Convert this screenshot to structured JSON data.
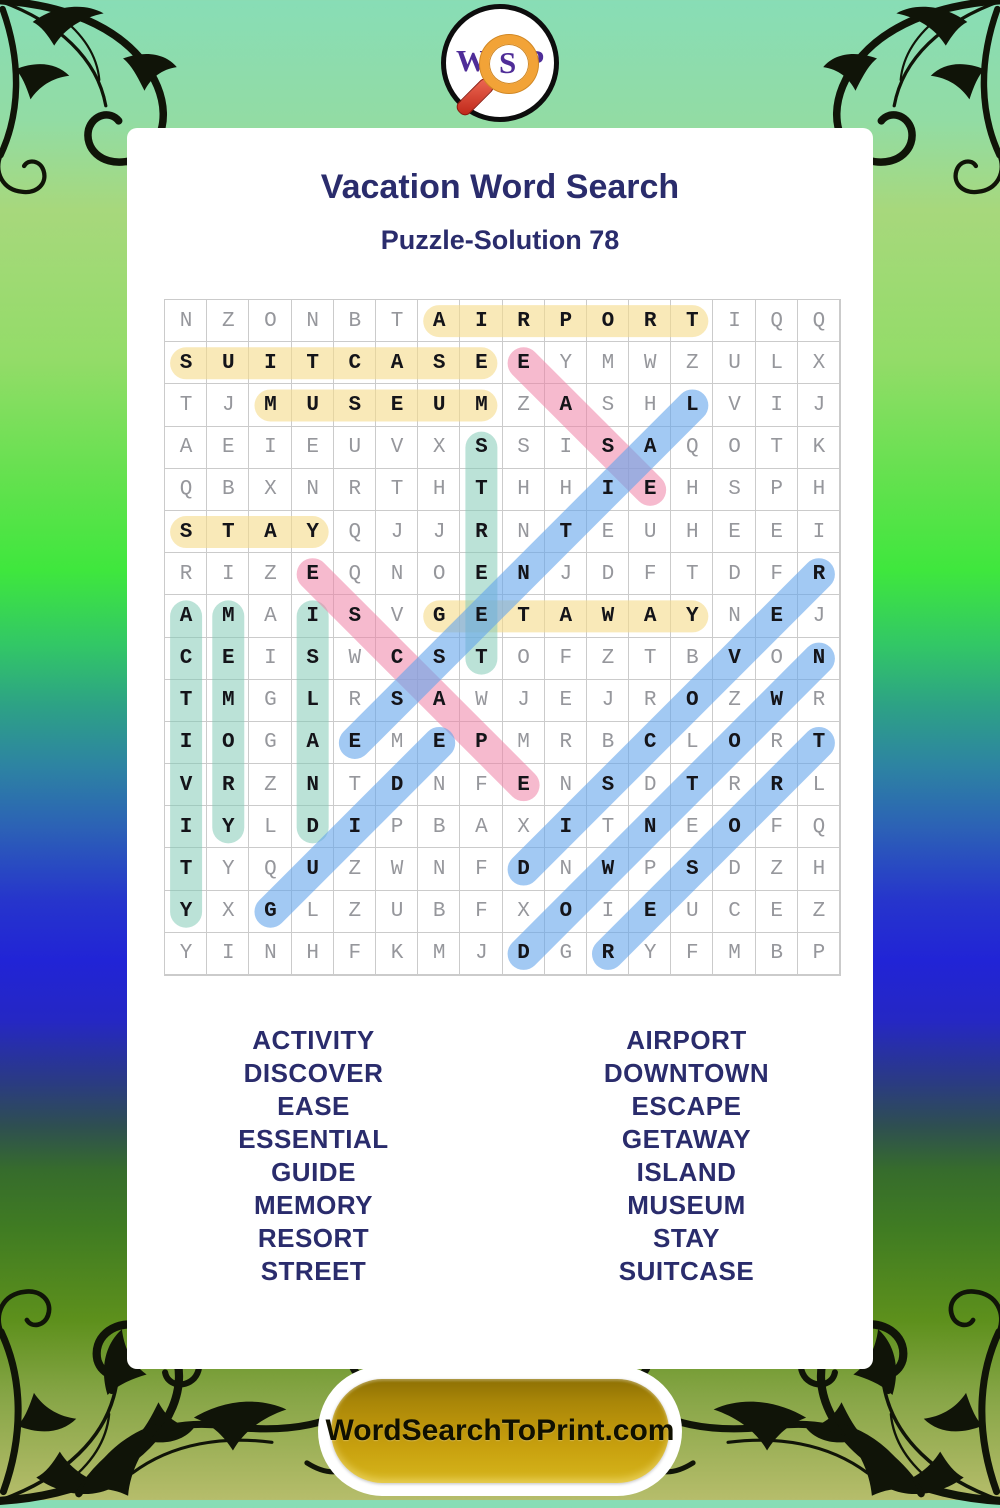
{
  "logo": {
    "w": "W",
    "s": "S",
    "p": "P"
  },
  "header": {
    "title": "Vacation Word Search",
    "subtitle": "Puzzle-Solution 78"
  },
  "puzzle": {
    "grid": [
      "NZONBTAIRPORTIQQ",
      "SUITCASEEYMWZULX",
      "TJMUSEUMZASHLVIJ",
      "AEIEUVXSSISAQOTK",
      "QBXNRTHTHHIEHSPH",
      "STAYQJJRNTEUHEEI",
      "RIZEQNOENJDFTDFR",
      "AMAISVGETAWAYNEJ",
      "CEISWCSTOFZTBVON",
      "TMGLRSAWJEJROZWR",
      "IOGAEMEPMRBCLORT",
      "VRZNTDNFENSDTRRL",
      "IYLDIPBAXITNEOFQ",
      "TYQUZWNFDNWPSDZH",
      "YXGLZUBFXOIEUCEZ",
      "YINHFKMJDGRYFMBP"
    ],
    "highlight_colors": {
      "yellow": "rgba(246,220,140,0.62)",
      "green": "rgba(132,203,182,0.55)",
      "pink": "rgba(238,130,165,0.55)",
      "blue": "rgba(100,165,235,0.6)"
    },
    "highlights": [
      {
        "word": "AIRPORT",
        "r1": 1,
        "c1": 7,
        "r2": 1,
        "c2": 13,
        "color": "yellow"
      },
      {
        "word": "SUITCASE",
        "r1": 2,
        "c1": 1,
        "r2": 2,
        "c2": 8,
        "color": "yellow"
      },
      {
        "word": "MUSEUM",
        "r1": 3,
        "c1": 3,
        "r2": 3,
        "c2": 8,
        "color": "yellow"
      },
      {
        "word": "STAY",
        "r1": 6,
        "c1": 1,
        "r2": 6,
        "c2": 4,
        "color": "yellow"
      },
      {
        "word": "GETAWAY",
        "r1": 8,
        "c1": 7,
        "r2": 8,
        "c2": 13,
        "color": "yellow"
      },
      {
        "word": "STREET",
        "r1": 4,
        "c1": 8,
        "r2": 9,
        "c2": 8,
        "color": "green"
      },
      {
        "word": "ACTIVITY",
        "r1": 8,
        "c1": 1,
        "r2": 15,
        "c2": 1,
        "color": "green"
      },
      {
        "word": "MEMORY",
        "r1": 8,
        "c1": 2,
        "r2": 13,
        "c2": 2,
        "color": "green"
      },
      {
        "word": "ISLAND",
        "r1": 8,
        "c1": 4,
        "r2": 13,
        "c2": 4,
        "color": "green"
      },
      {
        "word": "EASE",
        "r1": 2,
        "c1": 9,
        "r2": 5,
        "c2": 12,
        "color": "pink"
      },
      {
        "word": "ESCAPE",
        "r1": 7,
        "c1": 4,
        "r2": 12,
        "c2": 9,
        "color": "pink"
      },
      {
        "word": "ESSENTIAL",
        "r1": 11,
        "c1": 5,
        "r2": 3,
        "c2": 13,
        "color": "blue"
      },
      {
        "word": "GUIDE",
        "r1": 15,
        "c1": 3,
        "r2": 11,
        "c2": 7,
        "color": "blue"
      },
      {
        "word": "DISCOVER",
        "r1": 14,
        "c1": 9,
        "r2": 7,
        "c2": 16,
        "color": "blue"
      },
      {
        "word": "DOWNTOWN",
        "r1": 16,
        "c1": 9,
        "r2": 9,
        "c2": 16,
        "color": "blue"
      },
      {
        "word": "RESORT",
        "r1": 16,
        "c1": 11,
        "r2": 11,
        "c2": 16,
        "color": "blue"
      }
    ]
  },
  "word_lists": {
    "left": [
      "ACTIVITY",
      "DISCOVER",
      "EASE",
      "ESSENTIAL",
      "GUIDE",
      "MEMORY",
      "RESORT",
      "STREET"
    ],
    "right": [
      "AIRPORT",
      "DOWNTOWN",
      "ESCAPE",
      "GETAWAY",
      "ISLAND",
      "MUSEUM",
      "STAY",
      "SUITCASE"
    ]
  },
  "footer": {
    "button_label": "WordSearchToPrint.com"
  }
}
